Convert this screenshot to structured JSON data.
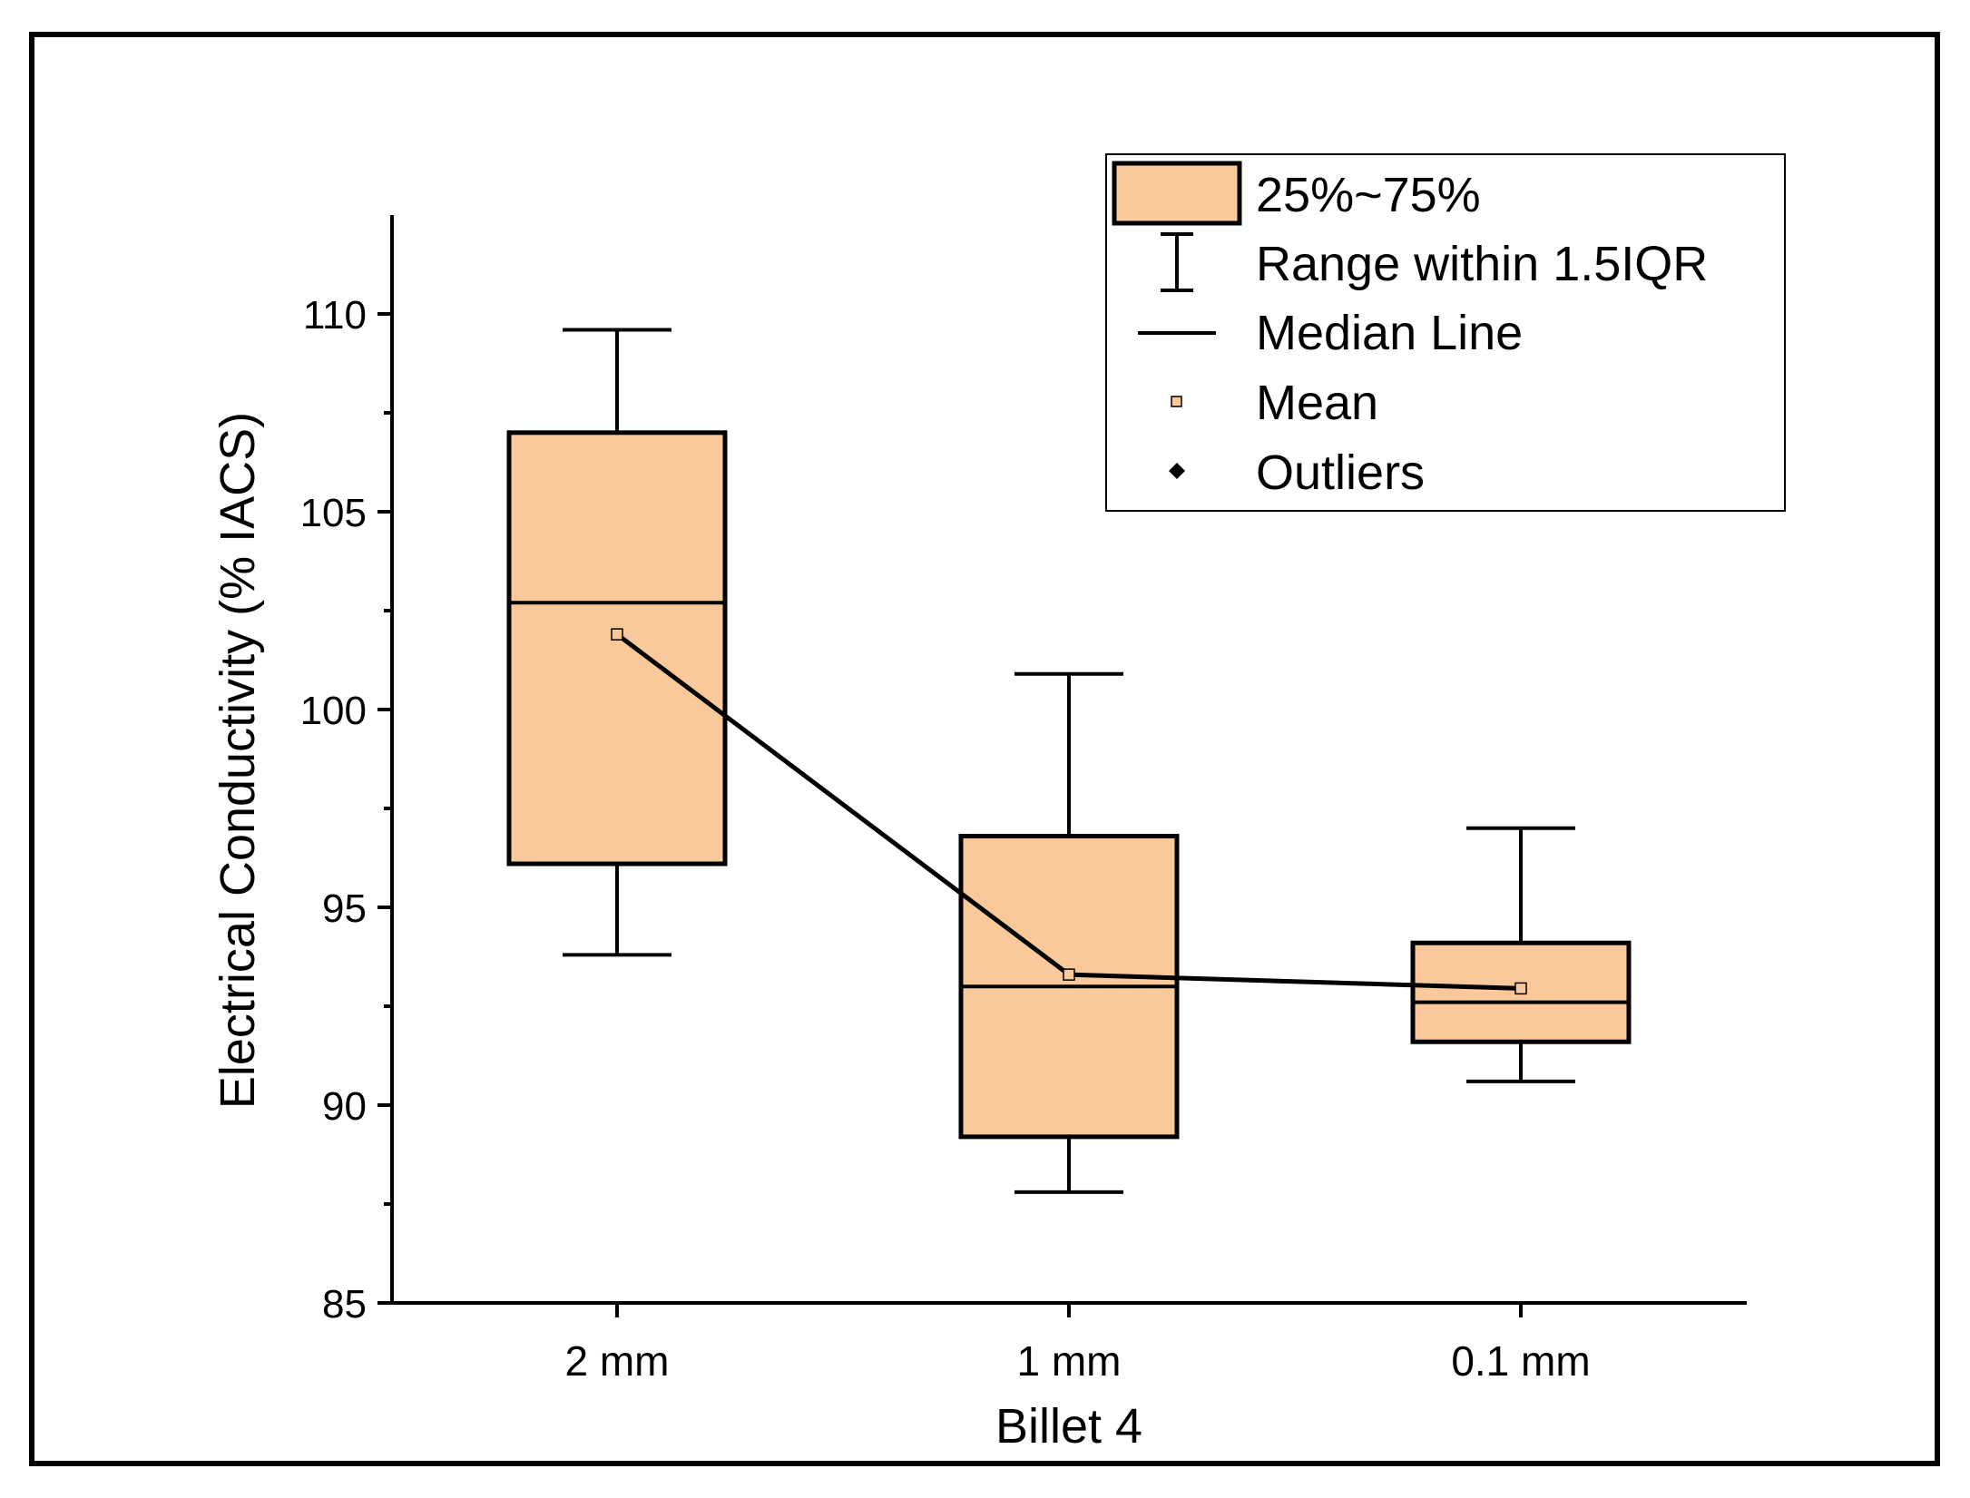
{
  "chart_data": {
    "type": "box",
    "xlabel": "Billet 4",
    "ylabel": "Electrical Conductivity (% IACS)",
    "ylim": [
      85,
      112.5
    ],
    "yticks": [
      85,
      90,
      95,
      100,
      105,
      110
    ],
    "categories": [
      "2 mm",
      "1 mm",
      "0.1 mm"
    ],
    "boxes": [
      {
        "category": "2 mm",
        "whisker_low": 93.8,
        "q1": 96.1,
        "median": 102.7,
        "q3": 107.0,
        "whisker_high": 109.6,
        "mean": 101.9
      },
      {
        "category": "1 mm",
        "whisker_low": 87.8,
        "q1": 89.2,
        "median": 93.0,
        "q3": 96.8,
        "whisker_high": 100.9,
        "mean": 93.3
      },
      {
        "category": "0.1 mm",
        "whisker_low": 90.6,
        "q1": 91.6,
        "median": 92.6,
        "q3": 94.1,
        "whisker_high": 97.0,
        "mean": 92.95
      }
    ],
    "mean_line": true,
    "legend": {
      "position": "top-right",
      "entries": [
        "25%~75%",
        "Range within 1.5IQR",
        "Median Line",
        "Mean",
        "Outliers"
      ]
    },
    "colors": {
      "box_fill": "#F9C89B",
      "stroke": "#000000",
      "mean_fill": "#F9C89B"
    }
  }
}
